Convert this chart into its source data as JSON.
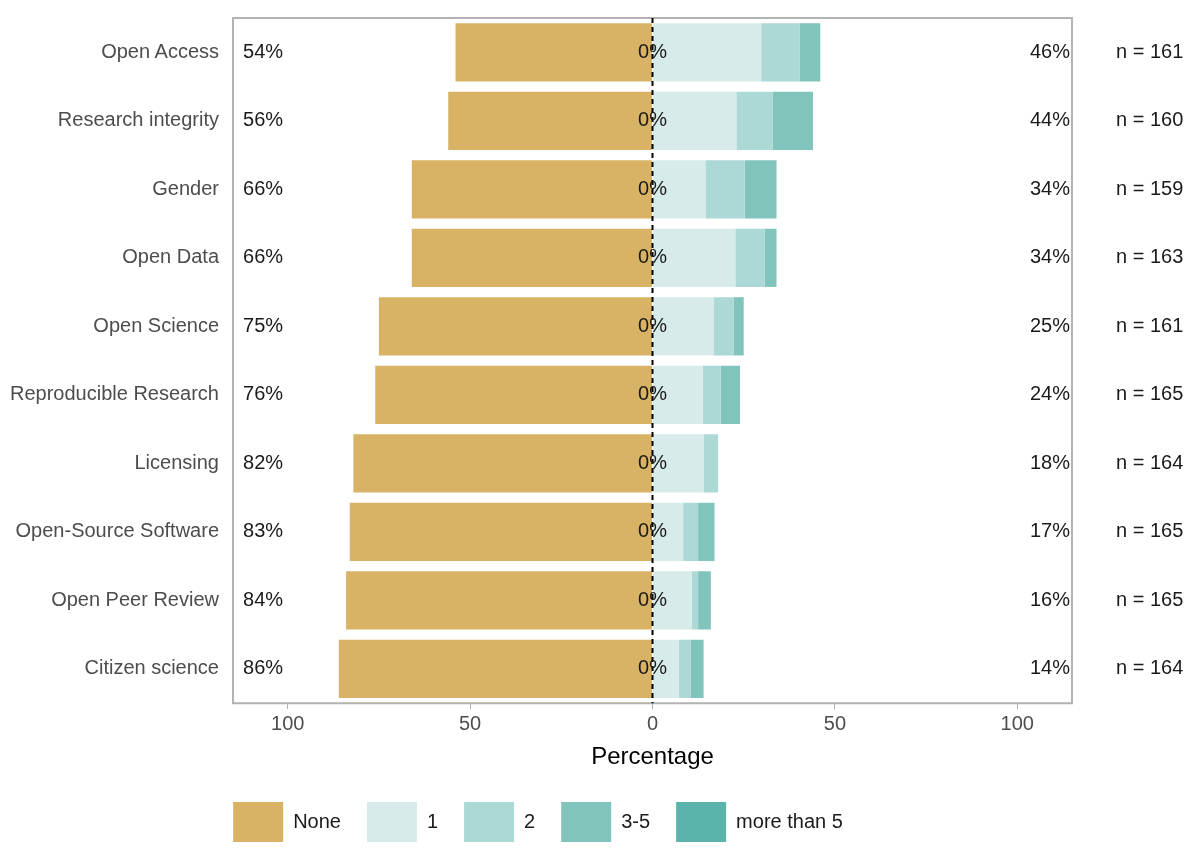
{
  "chart_data": {
    "type": "bar",
    "orientation": "horizontal",
    "stacked": true,
    "xlabel": "Percentage",
    "legend": "bottom",
    "grid": false,
    "categories": [
      "Open Access",
      "Research integrity",
      "Gender",
      "Open Data",
      "Open Science",
      "Reproducible Research",
      "Licensing",
      "Open-Source Software",
      "Open Peer Review",
      "Citizen science"
    ],
    "xlim": [
      -115,
      115
    ],
    "xticks": [
      {
        "value": -100,
        "label": "100"
      },
      {
        "value": -50,
        "label": "50"
      },
      0,
      50,
      100
    ],
    "series": [
      {
        "name": "None",
        "color": "#d8b365",
        "values": [
          -54,
          -56,
          -66,
          -66,
          -75,
          -76,
          -82,
          -83,
          -84,
          -86
        ]
      },
      {
        "name": "1",
        "color": "#d7ecea",
        "values": [
          29.8,
          23,
          14.5,
          22.7,
          16.7,
          13.8,
          14,
          8.4,
          10.8,
          7.2
        ]
      },
      {
        "name": "2",
        "color": "#acd8d5",
        "values": [
          10.6,
          10,
          10.8,
          8,
          5.6,
          4.9,
          4,
          4.1,
          1.7,
          3.2
        ]
      },
      {
        "name": "3-5",
        "color": "#80c4bc",
        "values": [
          5.6,
          11,
          8.7,
          3.3,
          2.7,
          5.3,
          0,
          4.5,
          3.5,
          3.6
        ]
      },
      {
        "name": "more than 5",
        "color": "#5ab4ac",
        "values": [
          0,
          0,
          0,
          0,
          0,
          0,
          0,
          0,
          0,
          0
        ]
      }
    ],
    "ref_lines": [
      {
        "axis": "x",
        "value": 0,
        "color": "#000000",
        "line_style": "dashed"
      }
    ],
    "annotations": [
      "54%",
      "56%",
      "66%",
      "66%",
      "75%",
      "76%",
      "82%",
      "83%",
      "84%",
      "86%",
      "0%",
      "0%",
      "0%",
      "0%",
      "0%",
      "0%",
      "0%",
      "0%",
      "0%",
      "0%",
      "46%",
      "44%",
      "34%",
      "34%",
      "25%",
      "24%",
      "18%",
      "17%",
      "16%",
      "14%",
      "n = 161",
      "n = 160",
      "n = 159",
      "n = 163",
      "n = 161",
      "n = 165",
      "n = 164",
      "n = 165",
      "n = 165",
      "n = 164"
    ]
  }
}
